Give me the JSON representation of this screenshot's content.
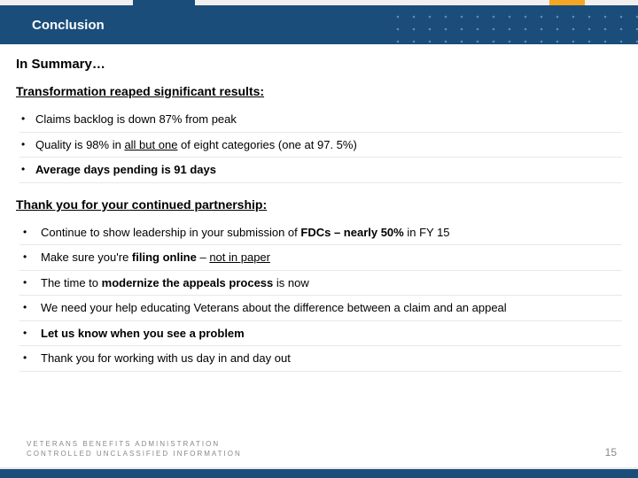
{
  "colors": {
    "header_bg": "#1a4d7a",
    "accent": "#f5a623",
    "text": "#000000",
    "muted": "#888888",
    "divider": "#e8e8e8",
    "background": "#ffffff"
  },
  "typography": {
    "header_title_size": 15,
    "summary_title_size": 15,
    "section_heading_size": 14,
    "bullet_size": 13,
    "footer_size": 8,
    "page_num_size": 12,
    "font_family": "Arial"
  },
  "header": {
    "title": "Conclusion"
  },
  "summary": {
    "title": "In Summary…"
  },
  "section1": {
    "heading": "Transformation reaped significant results:",
    "items": [
      {
        "html": "Claims backlog is down 87% from peak"
      },
      {
        "html": "Quality is 98% in <span class='u'>all but one</span> of eight categories (one at 97. 5%)"
      },
      {
        "html": "<span class='b'>Average days pending is 91 days</span>"
      }
    ]
  },
  "section2": {
    "heading": "Thank you for your continued partnership:",
    "items": [
      {
        "html": "Continue to show leadership in your submission of <span class='b'>FDCs – nearly 50%</span> in FY 15"
      },
      {
        "html": "Make sure you're <span class='b'>filing online</span> – <span class='u'>not in paper</span>"
      },
      {
        "html": "The time to <span class='b'>modernize the appeals process</span> is now"
      },
      {
        "html": "We need your help educating Veterans about the difference between a claim and an appeal"
      },
      {
        "html": "<span class='b'>Let us know when you see a problem</span>"
      },
      {
        "html": "Thank you for working with us day in and day out"
      }
    ]
  },
  "footer": {
    "line1": "VETERANS BENEFITS ADMINISTRATION",
    "line2": "CONTROLLED UNCLASSIFIED INFORMATION",
    "page": "15"
  }
}
